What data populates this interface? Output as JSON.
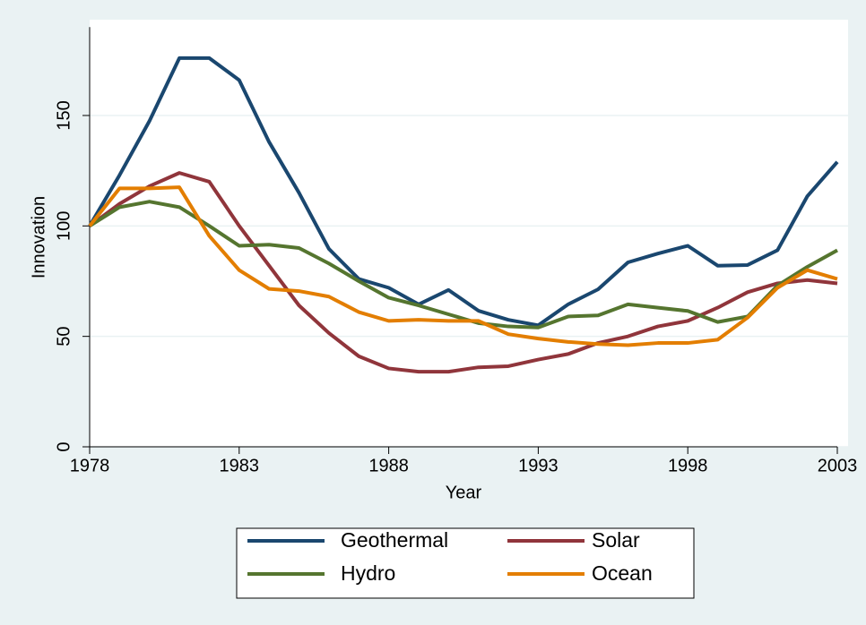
{
  "chart_data": {
    "type": "line",
    "x_label": "Year",
    "y_label": "Innovation",
    "x": [
      1978,
      1979,
      1980,
      1981,
      1982,
      1983,
      1984,
      1985,
      1986,
      1987,
      1988,
      1989,
      1990,
      1991,
      1992,
      1993,
      1994,
      1995,
      1996,
      1997,
      1998,
      1999,
      2000,
      2001,
      2002,
      2003
    ],
    "series": [
      {
        "name": "Geothermal",
        "color": "#1a476f",
        "values": [
          100,
          123,
          147.5,
          176,
          176,
          166,
          138,
          115,
          89.6,
          76,
          72,
          64.5,
          71,
          61.6,
          57.5,
          55,
          64.5,
          71.3,
          83.5,
          87.5,
          91,
          82,
          82.3,
          89,
          113.5,
          129
        ]
      },
      {
        "name": "Solar",
        "color": "#90353b",
        "values": [
          100,
          110,
          118,
          124,
          120,
          100,
          82,
          64,
          51.5,
          41,
          35.5,
          34,
          34,
          36,
          36.5,
          39.5,
          42,
          47,
          50,
          54.5,
          57,
          63,
          70,
          74,
          75.5,
          74
        ]
      },
      {
        "name": "Hydro",
        "color": "#55752f",
        "values": [
          100,
          108.5,
          111,
          108.5,
          100,
          91,
          91.5,
          90,
          83,
          75,
          67.5,
          64,
          60,
          56,
          54.5,
          54,
          59,
          59.5,
          64.5,
          63,
          61.5,
          56.5,
          59,
          73,
          81.5,
          89
        ]
      },
      {
        "name": "Ocean",
        "color": "#e37e00",
        "values": [
          100,
          117,
          117,
          117.5,
          95.5,
          80,
          71.5,
          70.5,
          68,
          61,
          57,
          57.5,
          57,
          57,
          51,
          49,
          47.5,
          46.5,
          46,
          47,
          47,
          48.5,
          58.5,
          72,
          80,
          76
        ]
      }
    ],
    "xlim": [
      1978,
      2003
    ],
    "xticks": [
      1978,
      1983,
      1988,
      1993,
      1998,
      2003
    ],
    "ylim": [
      0,
      190
    ],
    "yticks": [
      0,
      50,
      100,
      150
    ],
    "grid": true,
    "legend": "bottom"
  }
}
